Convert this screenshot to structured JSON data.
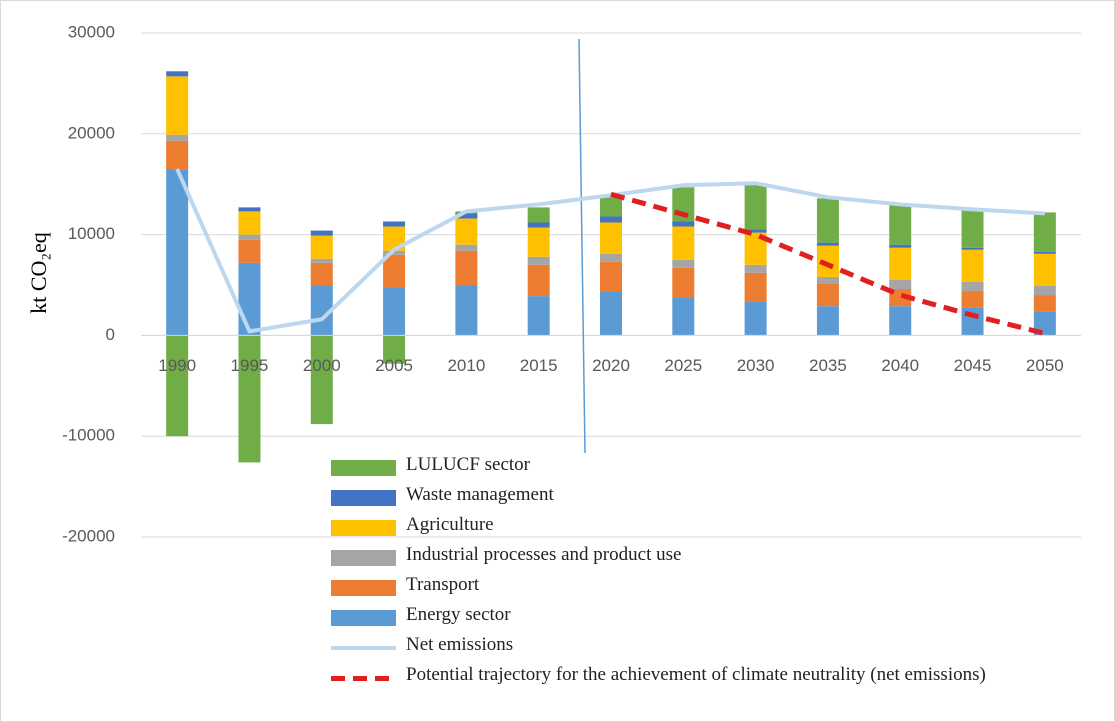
{
  "chart_data": {
    "type": "bar",
    "y_label": "kt CO₂eq",
    "categories": [
      "1990",
      "1995",
      "2000",
      "2005",
      "2010",
      "2015",
      "2020",
      "2025",
      "2030",
      "2035",
      "2040",
      "2045",
      "2050"
    ],
    "ylim": [
      -20000,
      30000
    ],
    "yticks": [
      -20000,
      -10000,
      0,
      10000,
      20000,
      30000
    ],
    "grid": true,
    "series": [
      {
        "name": "LULUCF sector",
        "color": "#70ad47",
        "values": [
          -10000,
          -12600,
          -8800,
          -2800,
          200,
          1500,
          2000,
          3400,
          4600,
          4400,
          3900,
          3700,
          3900
        ]
      },
      {
        "name": "Waste management",
        "color": "#4472c4",
        "values": [
          500,
          400,
          500,
          500,
          500,
          500,
          600,
          500,
          300,
          300,
          300,
          200,
          200
        ]
      },
      {
        "name": "Agriculture",
        "color": "#ffc000",
        "values": [
          5800,
          2300,
          2300,
          2400,
          2600,
          2900,
          3100,
          3300,
          3200,
          3100,
          3200,
          3200,
          3200
        ]
      },
      {
        "name": "Industrial processes and product use",
        "color": "#a5a5a5",
        "values": [
          600,
          500,
          400,
          400,
          600,
          800,
          800,
          800,
          800,
          700,
          900,
          900,
          900
        ]
      },
      {
        "name": "Transport",
        "color": "#ed7d31",
        "values": [
          2800,
          2300,
          2200,
          3300,
          3400,
          3100,
          2900,
          2900,
          2800,
          2200,
          1700,
          1600,
          1600
        ]
      },
      {
        "name": "Energy sector",
        "color": "#5b9bd5",
        "values": [
          16500,
          7200,
          5000,
          4700,
          5000,
          3900,
          4400,
          3800,
          3400,
          2900,
          2900,
          2800,
          2400
        ]
      },
      {
        "name": "Net emissions",
        "type": "line",
        "color": "#bdd7ee",
        "values": [
          16500,
          400,
          1600,
          8500,
          12300,
          13000,
          13900,
          14900,
          15100,
          13700,
          13000,
          12500,
          12100
        ]
      },
      {
        "name": "Potential trajectory for the achievement of climate neutrality (net emissions)",
        "type": "line",
        "dashed": true,
        "color": "#e02020",
        "values": [
          null,
          null,
          null,
          null,
          null,
          null,
          14000,
          12000,
          10000,
          7000,
          4000,
          2000,
          200
        ]
      }
    ]
  }
}
